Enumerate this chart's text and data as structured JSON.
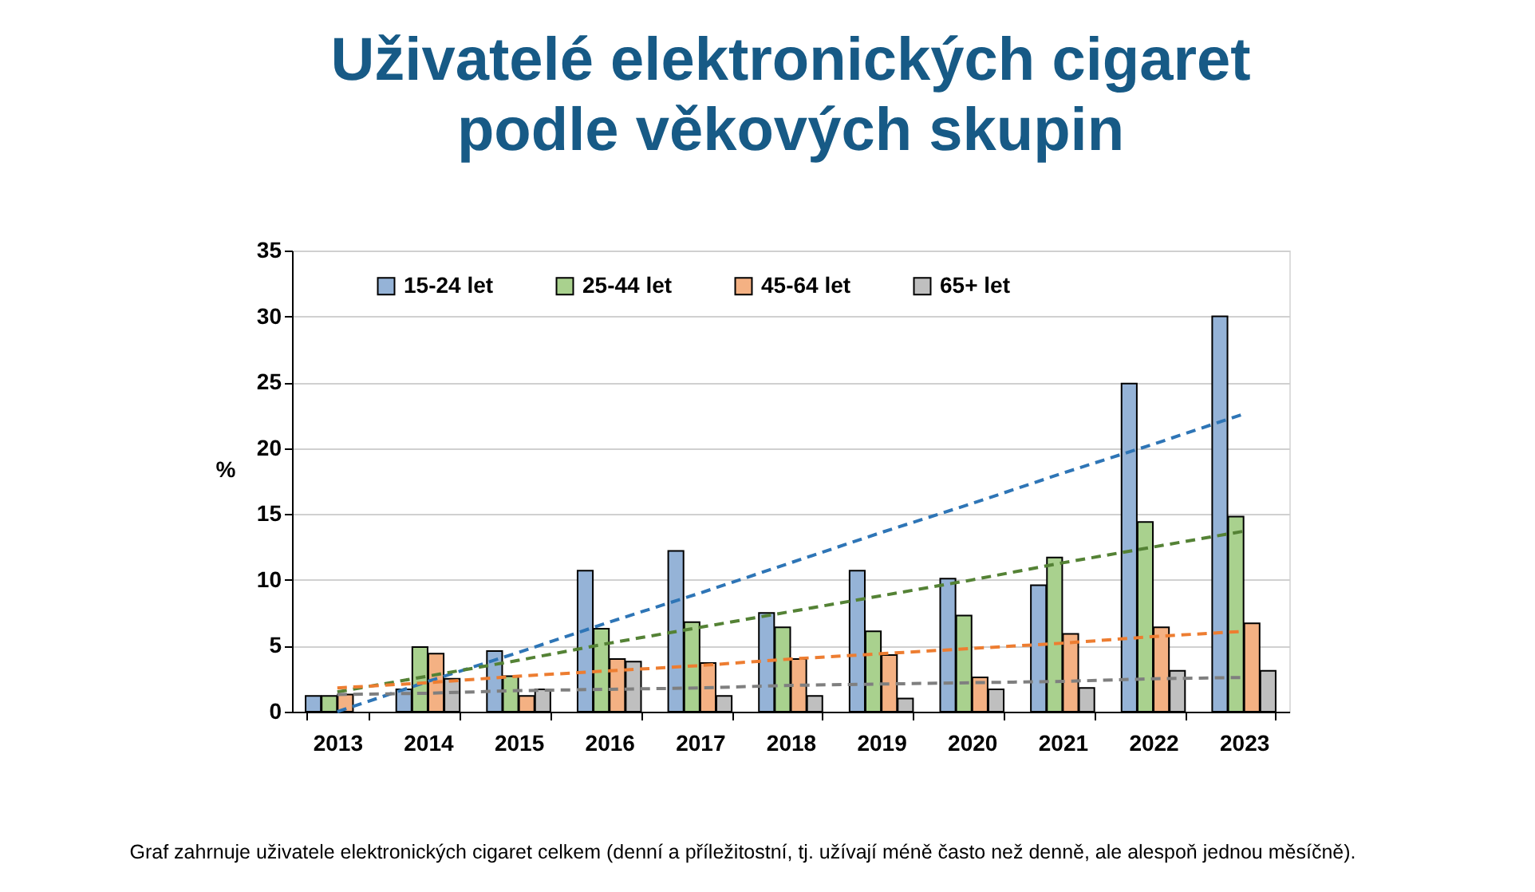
{
  "chart_data": {
    "type": "bar",
    "title": [
      "Uživatelé elektronických cigaret",
      "podle věkových skupin"
    ],
    "ylabel": "%",
    "categories": [
      "2013",
      "2014",
      "2015",
      "2016",
      "2017",
      "2018",
      "2019",
      "2020",
      "2021",
      "2022",
      "2023"
    ],
    "series": [
      {
        "name": "15-24 let",
        "color": "#95b3d7",
        "values": [
          1.2,
          1.7,
          4.6,
          10.7,
          12.2,
          7.5,
          10.7,
          10.1,
          9.6,
          24.9,
          30.0
        ]
      },
      {
        "name": "25-44 let",
        "color": "#a9d18e",
        "values": [
          1.2,
          4.9,
          2.7,
          6.3,
          6.8,
          6.4,
          6.1,
          7.3,
          11.7,
          14.4,
          14.8
        ]
      },
      {
        "name": "45-64 let",
        "color": "#f4b183",
        "values": [
          1.3,
          4.4,
          1.2,
          4.0,
          3.7,
          4.0,
          4.3,
          2.6,
          5.9,
          6.4,
          6.7
        ]
      },
      {
        "name": "65+ let",
        "color": "#bfbfbf",
        "values": [
          null,
          2.5,
          1.7,
          3.8,
          1.2,
          1.2,
          1.0,
          1.7,
          1.8,
          3.1,
          3.1
        ]
      },
      {
        "type": "line",
        "color": "#2e75b6",
        "line_style": "dashed",
        "values": [
          0.0,
          2.3,
          4.5,
          6.8,
          9.0,
          11.3,
          13.6,
          15.8,
          18.1,
          20.3,
          22.6
        ]
      },
      {
        "type": "line",
        "color": "#548235",
        "line_style": "dashed",
        "values": [
          1.5,
          2.7,
          3.9,
          5.2,
          6.4,
          7.6,
          8.8,
          10.0,
          11.3,
          12.5,
          13.7
        ]
      },
      {
        "type": "line",
        "color": "#ed7d31",
        "line_style": "dashed",
        "values": [
          1.8,
          2.2,
          2.7,
          3.1,
          3.5,
          4.0,
          4.4,
          4.8,
          5.2,
          5.7,
          6.1
        ]
      },
      {
        "type": "line",
        "color": "#7f7f7f",
        "line_style": "dashed",
        "values": [
          1.3,
          1.4,
          1.6,
          1.7,
          1.8,
          2.0,
          2.1,
          2.2,
          2.3,
          2.5,
          2.6
        ]
      }
    ],
    "ylim": [
      0,
      35
    ],
    "yticks": [
      0,
      5,
      10,
      15,
      20,
      25,
      30,
      35
    ],
    "grid": "y",
    "legend": "top",
    "annotations": [
      "Graf zahrnuje uživatele elektronických cigaret celkem (denní a příležitostní, tj. užívají méně často než denně, ale alespoň jednou měsíčně)."
    ]
  }
}
